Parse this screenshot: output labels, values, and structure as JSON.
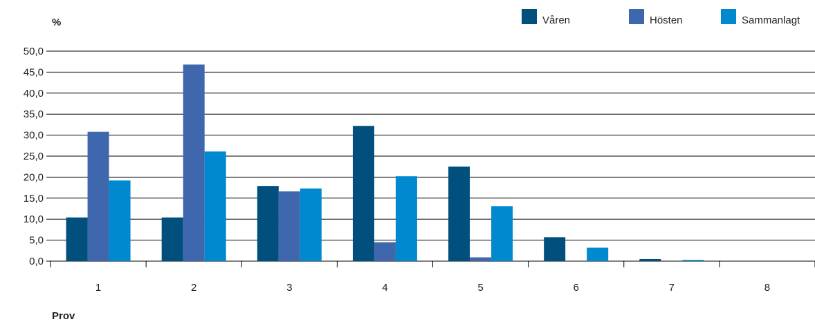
{
  "chart_data": {
    "type": "bar",
    "ylabel": "%",
    "xlabel": "Prov",
    "categories": [
      "1",
      "2",
      "3",
      "4",
      "5",
      "6",
      "7",
      "8"
    ],
    "ylim": [
      0,
      50
    ],
    "ytick_step": 5,
    "ytick_labels": [
      "0,0",
      "5,0",
      "10,0",
      "15,0",
      "20,0",
      "25,0",
      "30,0",
      "35,0",
      "40,0",
      "45,0",
      "50,0"
    ],
    "grid": true,
    "legend_position": "top-right",
    "series": [
      {
        "name": "Våren",
        "color": "#004f7c",
        "values": [
          10.4,
          10.4,
          17.9,
          32.2,
          22.5,
          5.7,
          0.5,
          0.0
        ]
      },
      {
        "name": "Hösten",
        "color": "#3f67ad",
        "values": [
          30.8,
          46.8,
          16.6,
          4.5,
          0.9,
          0.0,
          0.0,
          0.0
        ]
      },
      {
        "name": "Sammanlagt",
        "color": "#0089cf",
        "values": [
          19.2,
          26.1,
          17.3,
          20.2,
          13.1,
          3.2,
          0.3,
          0.0
        ]
      }
    ]
  }
}
